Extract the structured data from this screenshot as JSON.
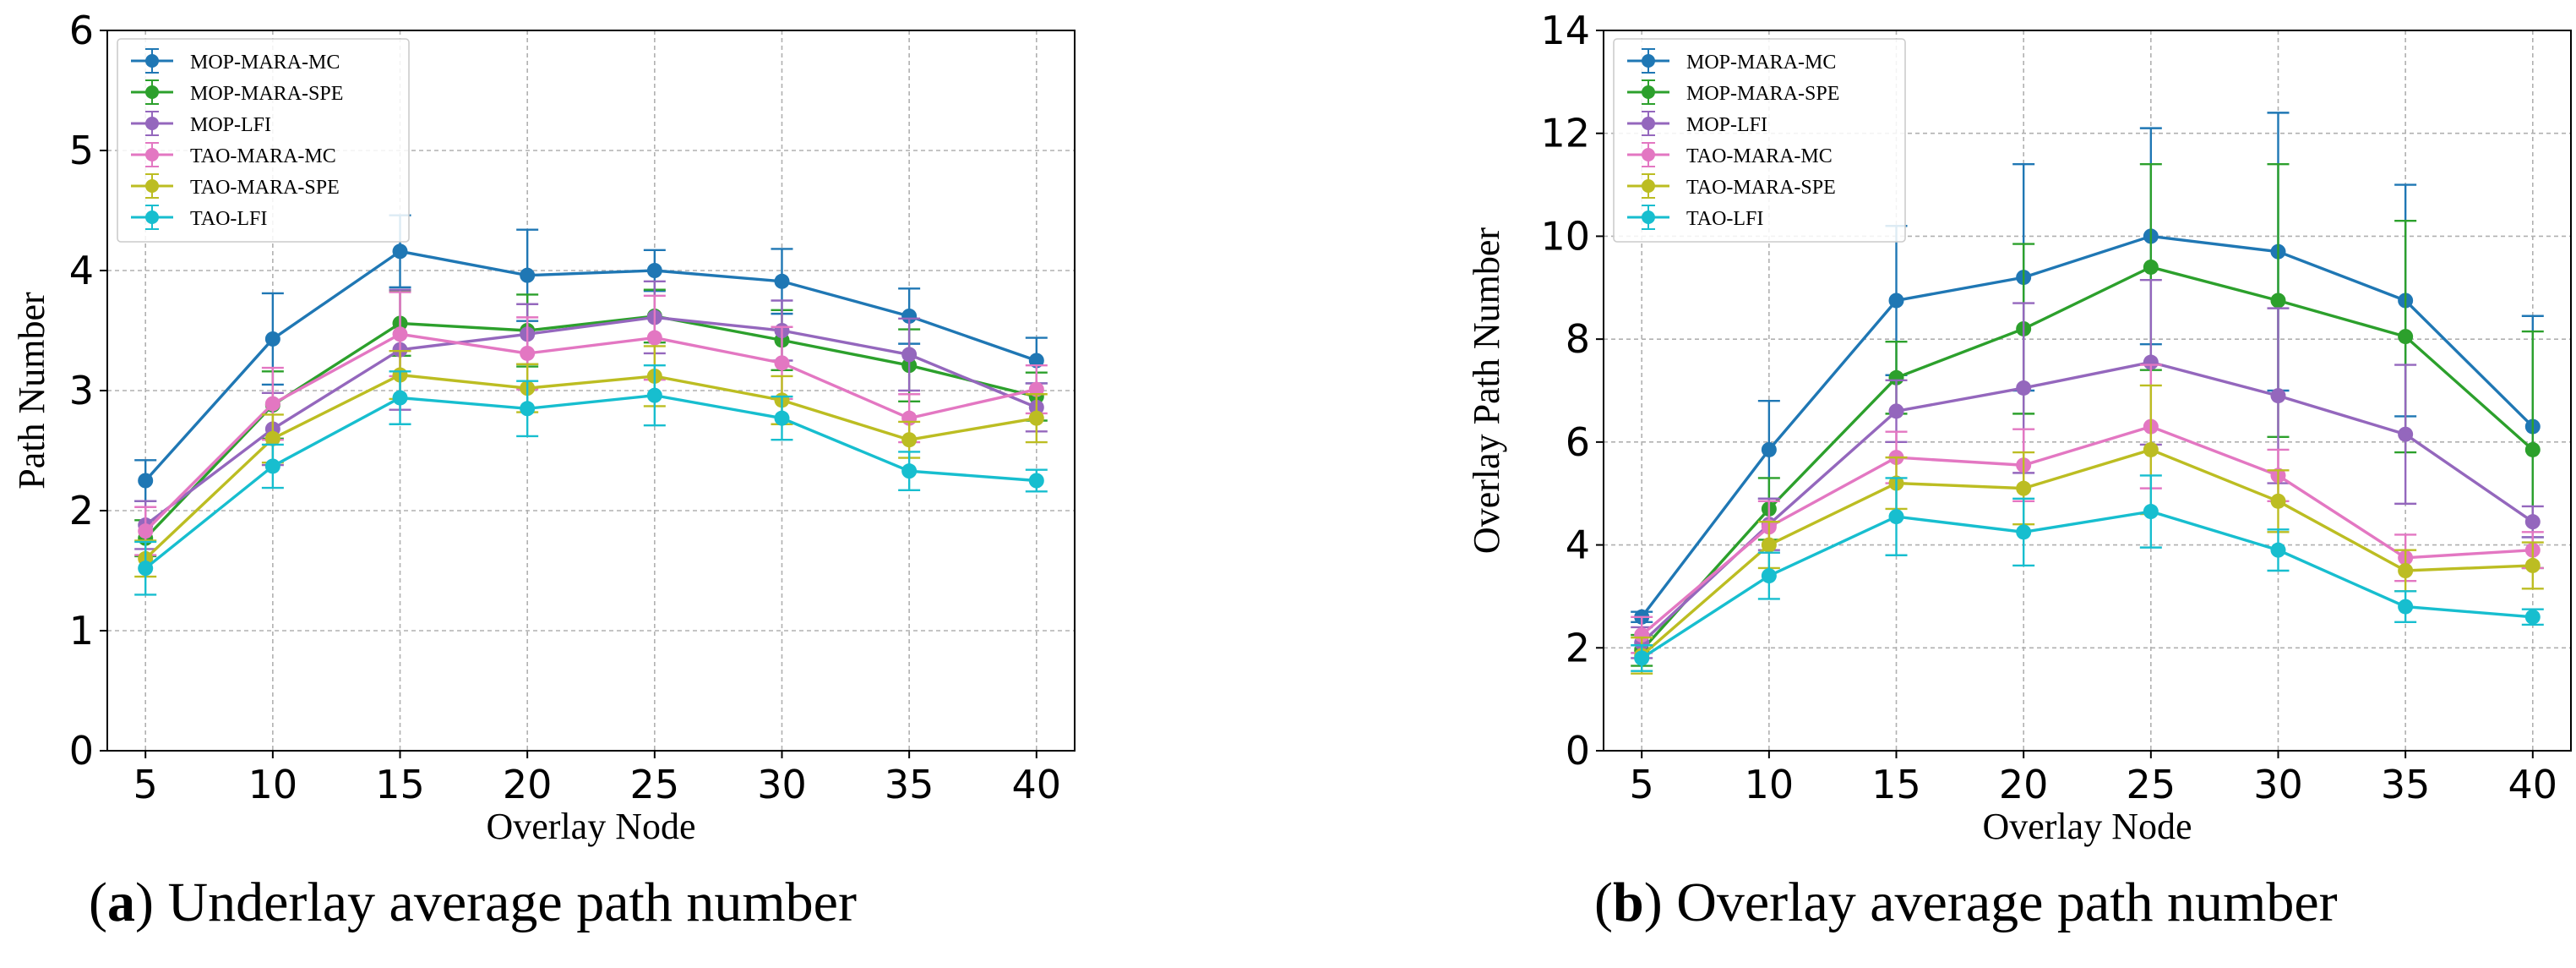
{
  "figure": {
    "caption_a_letter": "a",
    "caption_a_text": "Underlay average path number",
    "caption_b_letter": "b",
    "caption_b_text": "Overlay average path number"
  },
  "colors": {
    "MOP-MARA-MC": "#1f77b4",
    "MOP-MARA-SPE": "#2ca02c",
    "MOP-LFI": "#9467bd",
    "TAO-MARA-MC": "#e377c2",
    "TAO-MARA-SPE": "#bcbd22",
    "TAO-LFI": "#17becf"
  },
  "chart_data": [
    {
      "type": "line",
      "title": "",
      "xlabel": "Overlay Node",
      "ylabel": "Path Number",
      "x": [
        5,
        10,
        15,
        20,
        25,
        30,
        35,
        40
      ],
      "xlim": [
        3.5,
        41.5
      ],
      "ylim": [
        0,
        6
      ],
      "yticks": [
        0,
        1,
        2,
        3,
        4,
        5,
        6
      ],
      "grid": true,
      "legend": "top-left",
      "series": [
        {
          "name": "MOP-MARA-MC",
          "values": [
            2.25,
            3.43,
            4.16,
            3.96,
            4.0,
            3.91,
            3.62,
            3.25
          ],
          "err": [
            0.17,
            0.38,
            0.3,
            0.38,
            0.17,
            0.27,
            0.23,
            0.19
          ]
        },
        {
          "name": "MOP-MARA-SPE",
          "values": [
            1.77,
            2.88,
            3.56,
            3.5,
            3.62,
            3.42,
            3.21,
            2.95
          ],
          "err": [
            0.15,
            0.28,
            0.27,
            0.3,
            0.22,
            0.25,
            0.3,
            0.2
          ]
        },
        {
          "name": "MOP-LFI",
          "values": [
            1.88,
            2.68,
            3.34,
            3.47,
            3.61,
            3.5,
            3.3,
            2.86
          ],
          "err": [
            0.2,
            0.3,
            0.5,
            0.25,
            0.3,
            0.25,
            0.3,
            0.2
          ]
        },
        {
          "name": "TAO-MARA-MC",
          "values": [
            1.83,
            2.89,
            3.47,
            3.31,
            3.44,
            3.23,
            2.77,
            3.01
          ],
          "err": [
            0.2,
            0.3,
            0.35,
            0.3,
            0.35,
            0.3,
            0.2,
            0.2
          ]
        },
        {
          "name": "TAO-MARA-SPE",
          "values": [
            1.6,
            2.6,
            3.13,
            3.02,
            3.12,
            2.92,
            2.59,
            2.77
          ],
          "err": [
            0.15,
            0.2,
            0.2,
            0.2,
            0.25,
            0.2,
            0.15,
            0.2
          ]
        },
        {
          "name": "TAO-LFI",
          "values": [
            1.52,
            2.37,
            2.94,
            2.85,
            2.96,
            2.77,
            2.33,
            2.25
          ],
          "err": [
            0.22,
            0.18,
            0.22,
            0.23,
            0.25,
            0.18,
            0.16,
            0.09
          ]
        }
      ]
    },
    {
      "type": "line",
      "title": "",
      "xlabel": "Overlay Node",
      "ylabel": "Overlay Path Number",
      "x": [
        5,
        10,
        15,
        20,
        25,
        30,
        35,
        40
      ],
      "xlim": [
        3.5,
        41.5
      ],
      "ylim": [
        0,
        14
      ],
      "yticks": [
        0,
        2,
        4,
        6,
        8,
        10,
        12,
        14
      ],
      "grid": true,
      "legend": "top-left",
      "series": [
        {
          "name": "MOP-MARA-MC",
          "values": [
            2.6,
            5.85,
            8.75,
            9.2,
            10.0,
            9.7,
            8.75,
            6.3
          ],
          "err": [
            0.1,
            0.95,
            1.45,
            2.2,
            2.1,
            2.7,
            2.25,
            2.15
          ]
        },
        {
          "name": "MOP-MARA-SPE",
          "values": [
            1.95,
            4.7,
            7.25,
            8.2,
            9.4,
            8.75,
            8.05,
            5.85
          ],
          "err": [
            0.3,
            0.6,
            0.7,
            1.65,
            2.0,
            2.65,
            2.25,
            2.3
          ]
        },
        {
          "name": "MOP-LFI",
          "values": [
            2.1,
            4.4,
            6.6,
            7.05,
            7.55,
            6.9,
            6.15,
            4.45
          ],
          "err": [
            0.3,
            0.5,
            0.6,
            1.65,
            1.6,
            1.7,
            1.35,
            0.3
          ]
        },
        {
          "name": "TAO-MARA-MC",
          "values": [
            2.25,
            4.35,
            5.7,
            5.55,
            6.3,
            5.35,
            3.75,
            3.9
          ],
          "err": [
            0.35,
            0.5,
            0.5,
            0.7,
            1.2,
            0.5,
            0.45,
            0.35
          ]
        },
        {
          "name": "TAO-MARA-SPE",
          "values": [
            1.85,
            4.0,
            5.2,
            5.1,
            5.85,
            4.85,
            3.5,
            3.6
          ],
          "err": [
            0.35,
            0.45,
            0.5,
            0.7,
            1.25,
            0.6,
            0.4,
            0.45
          ]
        },
        {
          "name": "TAO-LFI",
          "values": [
            1.8,
            3.4,
            4.55,
            4.25,
            4.65,
            3.9,
            2.8,
            2.6
          ],
          "err": [
            0.25,
            0.45,
            0.75,
            0.65,
            0.7,
            0.4,
            0.3,
            0.15
          ]
        }
      ]
    }
  ]
}
